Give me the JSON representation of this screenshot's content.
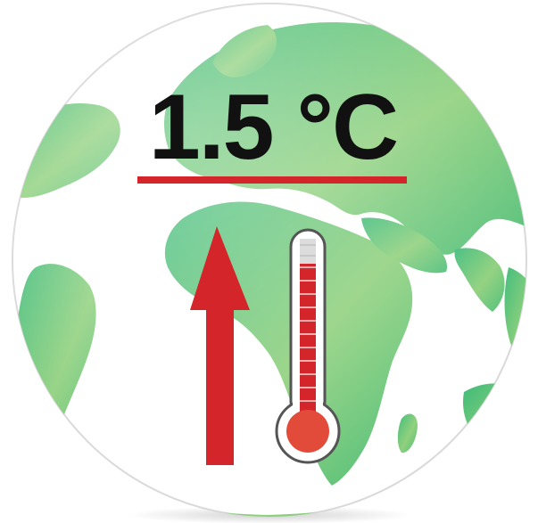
{
  "headline": {
    "text": "1.5 °C"
  },
  "colors": {
    "globe_land_light": "#a9d883",
    "globe_land_dark": "#3cb877",
    "ocean": "#ffffff",
    "accent_red": "#d4262a",
    "text": "#111111",
    "thermometer_outline": "#555555"
  },
  "icons": {
    "globe": "globe-icon",
    "arrow": "up-arrow-icon",
    "thermometer": "thermometer-icon"
  }
}
